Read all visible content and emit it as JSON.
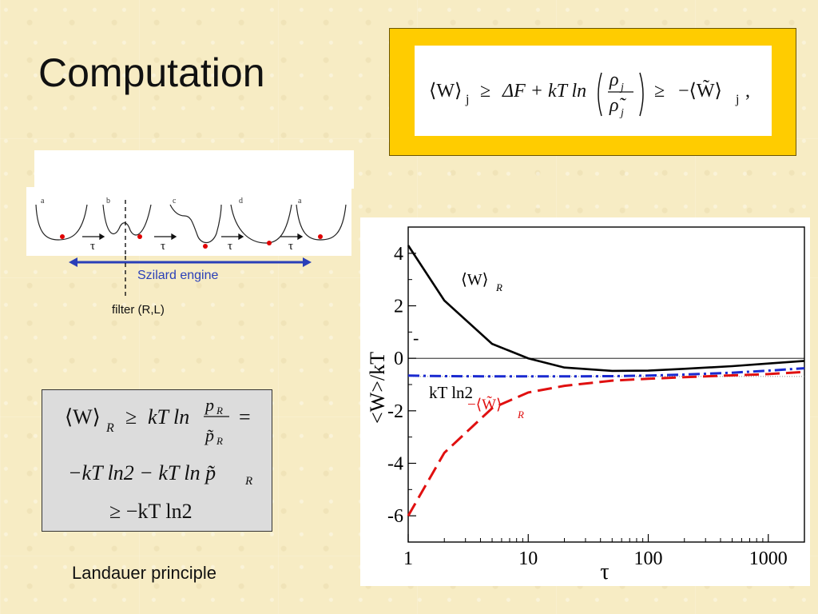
{
  "slide": {
    "title": "Computation",
    "landauer_caption": "Landauer principle",
    "engine_label": "Szilard engine",
    "filter_label": "filter (R,L)"
  },
  "cycle_diagram": {
    "panel_labels": [
      "a",
      "b",
      "c",
      "d",
      "a"
    ],
    "arrow_label": "τ"
  },
  "top_formula": {
    "lhs": "⟨W⟩",
    "lhs_sub": "j",
    "op1": "≥",
    "mid": "ΔF + kT ln",
    "frac_num": "ρ",
    "frac_num_sub": "j",
    "frac_den": "ρ̃",
    "frac_den_sub": "j",
    "op2": "≥",
    "rhs": "−⟨W̃⟩",
    "rhs_sub": "j",
    "end": ","
  },
  "landauer_formula": {
    "line1_lhs": "⟨W⟩",
    "line1_lhs_sub": "R",
    "line1_op": "≥",
    "line1_mid": "kT ln",
    "frac_num": "p",
    "frac_num_sub": "R",
    "frac_den": "p̃",
    "frac_den_sub": "R",
    "line1_end": "=",
    "line2": "−kT ln2 − kT ln p̃",
    "line2_sub": "R",
    "line3": "≥ −kT ln2"
  },
  "chart_data": {
    "type": "line",
    "xlabel": "τ",
    "ylabel": "<W>/kT",
    "x_scale": "log",
    "xlim": [
      1,
      2000
    ],
    "ylim": [
      -7,
      5
    ],
    "x_ticks": [
      1,
      10,
      100,
      1000
    ],
    "x_tick_labels": [
      "1",
      "10",
      "100",
      "1000"
    ],
    "y_ticks": [
      4,
      2,
      0,
      -2,
      -4,
      -6
    ],
    "y_tick_labels": [
      "4",
      "2",
      "0",
      "-2",
      "-4",
      "-6"
    ],
    "grid": false,
    "series": [
      {
        "name": "⟨W⟩_R",
        "color": "#000000",
        "style": "solid",
        "x": [
          1,
          2,
          5,
          10,
          20,
          50,
          100,
          200,
          500,
          1000,
          2000
        ],
        "y": [
          4.3,
          2.2,
          0.55,
          0.0,
          -0.35,
          -0.48,
          -0.47,
          -0.4,
          -0.3,
          -0.2,
          -0.1
        ]
      },
      {
        "name": "−⟨W̃⟩_R",
        "color": "#e01010",
        "style": "dashed",
        "x": [
          1,
          2,
          5,
          10,
          20,
          50,
          100,
          200,
          500,
          1000,
          2000
        ],
        "y": [
          -6.0,
          -3.6,
          -1.9,
          -1.3,
          -1.05,
          -0.85,
          -0.78,
          -0.72,
          -0.65,
          -0.6,
          -0.52
        ]
      },
      {
        "name": "",
        "color": "#1a2ad0",
        "style": "dashdot",
        "x": [
          1,
          2,
          5,
          10,
          20,
          50,
          100,
          200,
          500,
          1000,
          2000
        ],
        "y": [
          -0.66,
          -0.68,
          -0.69,
          -0.69,
          -0.69,
          -0.68,
          -0.66,
          -0.62,
          -0.55,
          -0.47,
          -0.38
        ]
      }
    ],
    "reference_lines": [
      {
        "y": 0,
        "color": "#000000",
        "style": "thin"
      },
      {
        "y": -0.69,
        "color": "#888888",
        "style": "dotted"
      }
    ],
    "annotations": {
      "w_label": "⟨W⟩",
      "w_label_sub": "R",
      "minus_sign": "-",
      "ktln2": "kT ln2",
      "wtilde_label": "−⟨W̃⟩",
      "wtilde_label_sub": "R"
    }
  }
}
